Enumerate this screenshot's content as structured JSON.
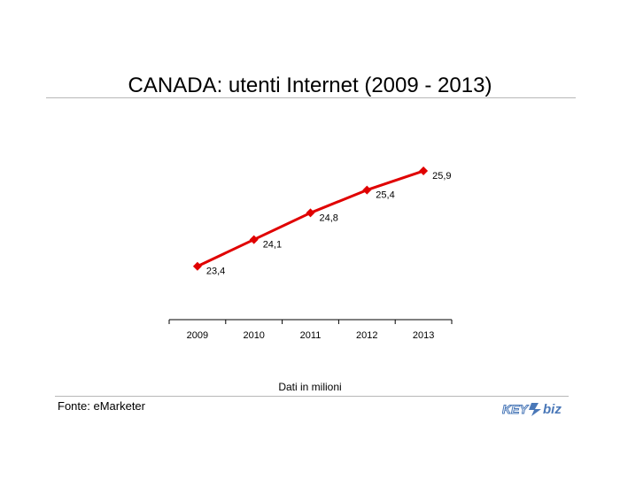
{
  "header": {
    "title": "CANADA: utenti Internet (2009 - 2013)"
  },
  "footer": {
    "note": "Dati in milioni",
    "source": "Fonte: eMarketer",
    "logo_text": "KEY4biz"
  },
  "colors": {
    "series": "#e00000",
    "rule": "#b8b8b8",
    "axis": "#000000",
    "logo": "#4a78b8"
  },
  "chart_data": {
    "type": "line",
    "title": "CANADA: utenti Internet (2009 - 2013)",
    "x": [
      "2009",
      "2010",
      "2011",
      "2012",
      "2013"
    ],
    "series": [
      {
        "values": [
          23.4,
          24.1,
          24.8,
          25.4,
          25.9
        ],
        "labels": [
          "23,4",
          "24,1",
          "24,8",
          "25,4",
          "25,9"
        ]
      }
    ],
    "ylim": [
      22.0,
      26.9
    ],
    "grid": false,
    "legend": "none",
    "marker": "diamond"
  }
}
